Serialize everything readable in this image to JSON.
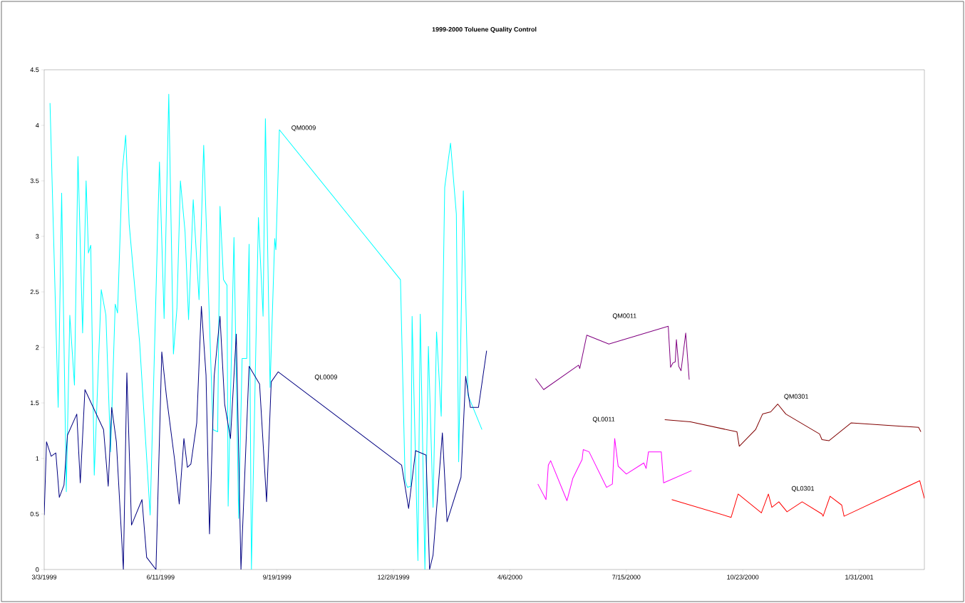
{
  "chart_data": {
    "type": "line",
    "title": "1999-2000 Toluene Quality Control",
    "xlim": [
      "1999-03-03",
      "2001-03-28"
    ],
    "ylim": [
      0,
      4.5
    ],
    "xticks": [
      {
        "value": "1999-03-03",
        "label": "3/3/1999"
      },
      {
        "value": "1999-06-11",
        "label": "6/11/1999"
      },
      {
        "value": "1999-09-19",
        "label": "9/19/1999"
      },
      {
        "value": "1999-12-28",
        "label": "12/28/1999"
      },
      {
        "value": "2000-04-06",
        "label": "4/6/2000"
      },
      {
        "value": "2000-07-15",
        "label": "7/15/2000"
      },
      {
        "value": "2000-10-23",
        "label": "10/23/2000"
      },
      {
        "value": "2001-01-31",
        "label": "1/31/2001"
      }
    ],
    "yticks": [
      0,
      0.5,
      1,
      1.5,
      2,
      2.5,
      3,
      3.5,
      4,
      4.5
    ],
    "series": [
      {
        "name": "QM0009",
        "color": "#00ffff",
        "x": [
          "1999-03-08",
          "1999-03-15",
          "1999-03-18",
          "1999-03-22",
          "1999-03-25",
          "1999-03-29",
          "1999-04-01",
          "1999-04-05",
          "1999-04-08",
          "1999-04-10",
          "1999-04-12",
          "1999-04-15",
          "1999-04-21",
          "1999-04-25",
          "1999-04-29",
          "1999-05-03",
          "1999-05-05",
          "1999-05-09",
          "1999-05-12",
          "1999-05-15",
          "1999-05-24",
          "1999-06-02",
          "1999-06-10",
          "1999-06-14",
          "1999-06-18",
          "1999-06-22",
          "1999-06-25",
          "1999-06-28",
          "1999-07-02",
          "1999-07-05",
          "1999-07-09",
          "1999-07-14",
          "1999-07-18",
          "1999-07-26",
          "1999-07-30",
          "1999-08-01",
          "1999-08-04",
          "1999-08-07",
          "1999-08-08",
          "1999-08-13",
          "1999-08-17",
          "1999-08-20",
          "1999-08-24",
          "1999-08-26",
          "1999-08-28",
          "1999-09-03",
          "1999-09-07",
          "1999-09-09",
          "1999-09-13",
          "1999-09-17",
          "1999-09-18",
          "1999-09-21",
          "2000-01-03",
          "2000-01-07",
          "2000-01-09",
          "2000-01-12",
          "2000-01-13",
          "2000-01-18",
          "2000-01-20",
          "2000-01-24",
          "2000-01-27",
          "2000-01-31",
          "2000-02-03",
          "2000-02-07",
          "2000-02-10",
          "2000-02-15",
          "2000-02-20",
          "2000-02-22",
          "2000-02-26",
          "2000-03-01",
          "2000-03-13"
        ],
        "values": [
          4.2,
          1.46,
          3.39,
          0.7,
          2.29,
          1.66,
          3.72,
          2.13,
          3.5,
          2.85,
          2.92,
          0.85,
          2.52,
          2.29,
          1.06,
          2.39,
          2.31,
          3.58,
          3.91,
          3.11,
          2.04,
          0.49,
          3.67,
          2.26,
          4.28,
          1.94,
          2.35,
          3.5,
          3.04,
          2.25,
          3.33,
          2.43,
          3.82,
          1.26,
          1.24,
          3.27,
          2.61,
          2.56,
          0.57,
          2.99,
          0.46,
          1.9,
          1.9,
          2.93,
          0,
          3.17,
          2.28,
          4.06,
          1.64,
          2.98,
          2.88,
          3.96,
          2.61,
          0.8,
          0.74,
          0.75,
          2.28,
          0.08,
          2.3,
          0,
          2.01,
          0.56,
          2.14,
          1.38,
          3.44,
          3.84,
          3.2,
          0.97,
          3.41,
          1.57,
          1.26
        ]
      },
      {
        "name": "QL0009",
        "color": "#000080",
        "x": [
          "1999-03-03",
          "1999-03-05",
          "1999-03-09",
          "1999-03-13",
          "1999-03-16",
          "1999-03-20",
          "1999-03-23",
          "1999-03-31",
          "1999-04-03",
          "1999-04-07",
          "1999-04-23",
          "1999-04-27",
          "1999-04-30",
          "1999-05-04",
          "1999-05-10",
          "1999-05-13",
          "1999-05-17",
          "1999-05-26",
          "1999-05-30",
          "1999-06-07",
          "1999-06-12",
          "1999-06-16",
          "1999-06-23",
          "1999-06-27",
          "1999-07-01",
          "1999-07-04",
          "1999-07-07",
          "1999-07-12",
          "1999-07-16",
          "1999-07-20",
          "1999-07-23",
          "1999-07-27",
          "1999-08-01",
          "1999-08-05",
          "1999-08-10",
          "1999-08-15",
          "1999-08-19",
          "1999-08-26",
          "1999-09-04",
          "1999-09-10",
          "1999-09-14",
          "1999-09-20",
          "2000-01-04",
          "2000-01-10",
          "2000-01-16",
          "2000-01-25",
          "2000-01-28",
          "2000-01-31",
          "2000-02-08",
          "2000-02-12",
          "2000-02-24",
          "2000-02-28",
          "2000-03-03",
          "2000-03-10",
          "2000-03-17"
        ],
        "values": [
          0.49,
          1.15,
          1.02,
          1.05,
          0.65,
          0.76,
          1.21,
          1.4,
          0.78,
          1.62,
          1.26,
          0.75,
          1.46,
          1.15,
          0,
          1.77,
          0.4,
          0.63,
          0.11,
          0,
          1.96,
          1.56,
          0.99,
          0.59,
          1.18,
          0.92,
          0.95,
          1.32,
          2.37,
          1.75,
          0.32,
          1.74,
          2.28,
          1.49,
          1.18,
          2.12,
          0,
          1.83,
          1.67,
          0.61,
          1.69,
          1.78,
          0.94,
          0.55,
          1.07,
          1.03,
          0,
          0.13,
          1.23,
          0.43,
          0.83,
          1.74,
          1.46,
          1.46,
          1.97
        ]
      },
      {
        "name": "QM0011",
        "color": "#800080",
        "x": [
          "2000-04-28",
          "2000-05-05",
          "2000-06-04",
          "2000-06-05",
          "2000-06-11",
          "2000-06-30",
          "2000-08-20",
          "2000-08-22",
          "2000-08-24",
          "2000-08-26",
          "2000-08-27",
          "2000-08-29",
          "2000-08-31",
          "2000-09-04",
          "2000-09-07"
        ],
        "values": [
          1.72,
          1.62,
          1.84,
          1.81,
          2.11,
          2.03,
          2.19,
          1.82,
          1.86,
          1.87,
          2.07,
          1.83,
          1.79,
          2.13,
          1.71
        ]
      },
      {
        "name": "QL0011",
        "color": "#ff00ff",
        "x": [
          "2000-04-30",
          "2000-05-07",
          "2000-05-09",
          "2000-05-11",
          "2000-05-25",
          "2000-05-30",
          "2000-06-07",
          "2000-06-08",
          "2000-06-13",
          "2000-06-28",
          "2000-07-03",
          "2000-07-05",
          "2000-07-08",
          "2000-07-15",
          "2000-07-30",
          "2000-08-01",
          "2000-08-03",
          "2000-08-14",
          "2000-08-16",
          "2000-09-09"
        ],
        "values": [
          0.77,
          0.63,
          0.94,
          0.98,
          0.62,
          0.82,
          0.99,
          1.08,
          1.06,
          0.74,
          0.77,
          1.18,
          0.93,
          0.86,
          0.96,
          0.91,
          1.06,
          1.06,
          0.78,
          0.89
        ]
      },
      {
        "name": "QM0301",
        "color": "#800000",
        "x": [
          "2000-08-17",
          "2000-09-08",
          "2000-10-18",
          "2000-10-20",
          "2000-11-03",
          "2000-11-09",
          "2000-11-16",
          "2000-11-22",
          "2000-11-29",
          "2000-12-28",
          "2000-12-30",
          "2001-01-05",
          "2001-01-24",
          "2001-03-23",
          "2001-03-25"
        ],
        "values": [
          1.35,
          1.33,
          1.24,
          1.11,
          1.26,
          1.4,
          1.42,
          1.49,
          1.4,
          1.22,
          1.17,
          1.16,
          1.32,
          1.28,
          1.24
        ]
      },
      {
        "name": "QL0301",
        "color": "#ff0000",
        "x": [
          "2000-08-23",
          "2000-10-13",
          "2000-10-19",
          "2000-11-08",
          "2000-11-14",
          "2000-11-17",
          "2000-11-23",
          "2000-11-30",
          "2000-12-13",
          "2000-12-30",
          "2000-12-31",
          "2001-01-06",
          "2001-01-16",
          "2001-01-18",
          "2001-03-24",
          "2001-03-28"
        ],
        "values": [
          0.63,
          0.47,
          0.68,
          0.51,
          0.68,
          0.56,
          0.61,
          0.52,
          0.61,
          0.5,
          0.48,
          0.66,
          0.58,
          0.48,
          0.8,
          0.64
        ]
      }
    ]
  }
}
